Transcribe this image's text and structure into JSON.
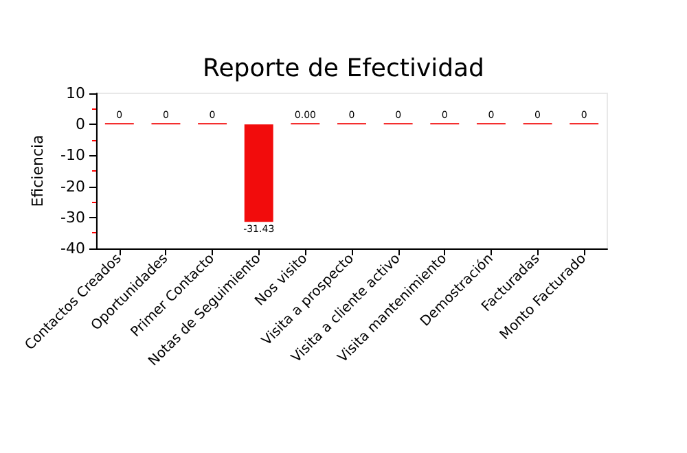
{
  "chart_data": {
    "type": "bar",
    "title": "Reporte de Efectividad",
    "ylabel": "Eficiencia",
    "categories": [
      "Contactos Creados",
      "Oportunidades",
      "Primer Contacto",
      "Notas de Seguimiento",
      "Nos visito",
      "Visita a prospecto",
      "Visita a cliente activo",
      "Visita mantenimiento",
      "Demostración",
      "Facturadas",
      "Monto Facturado"
    ],
    "values": [
      0,
      0,
      0,
      -31.43,
      0,
      0,
      0,
      0,
      0,
      0,
      0
    ],
    "value_labels": [
      "0",
      "0",
      "0",
      "-31.43",
      "0.00",
      "0",
      "0",
      "0",
      "0",
      "0",
      "0"
    ],
    "color": "#f20c0c",
    "ylim": [
      -40,
      10
    ],
    "yticks": [
      -40,
      -30,
      -20,
      -10,
      0,
      10
    ],
    "grid": false
  }
}
